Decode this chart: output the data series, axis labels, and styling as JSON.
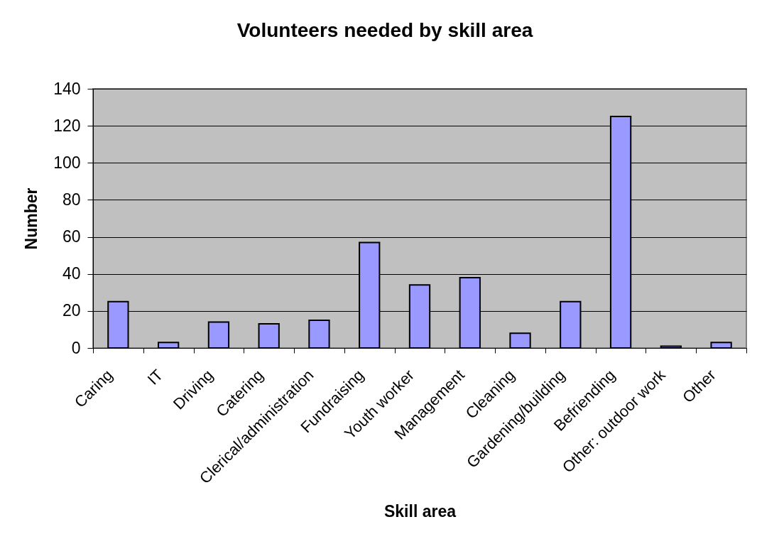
{
  "chart_data": {
    "type": "bar",
    "title": "Volunteers needed by skill area",
    "xlabel": "Skill area",
    "ylabel": "Number",
    "categories": [
      "Caring",
      "IT",
      "Driving",
      "Catering",
      "Clerical/administration",
      "Fundraising",
      "Youth worker",
      "Management",
      "Cleaning",
      "Gardening/building",
      "Befriending",
      "Other: outdoor work",
      "Other"
    ],
    "values": [
      25,
      3,
      14,
      13,
      15,
      57,
      34,
      38,
      8,
      25,
      125,
      1,
      3
    ],
    "color": "#9999ff",
    "ylim": [
      0,
      140
    ],
    "yticks": [
      0,
      20,
      40,
      60,
      80,
      100,
      120,
      140
    ],
    "grid": "y"
  }
}
